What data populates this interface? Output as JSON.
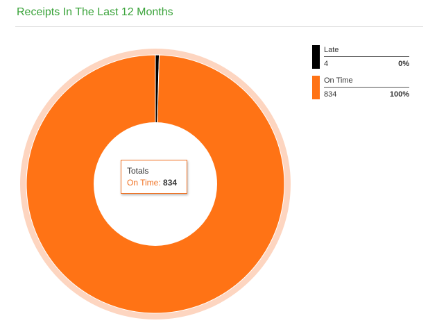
{
  "panel": {
    "title": "Receipts In The Last 12 Months"
  },
  "chart_data": {
    "type": "pie",
    "title": "Receipts In The Last 12 Months",
    "categories": [
      "Late",
      "On Time"
    ],
    "values": [
      4,
      834
    ],
    "percent_labels": [
      "0%",
      "100%"
    ],
    "colors": [
      "#000000",
      "#ff7315"
    ],
    "halo_color": "#fdd5c0",
    "hole_color": "#ffffff",
    "legend_position": "right",
    "center_tooltip": {
      "title": "Totals",
      "label": "On Time:",
      "value": "834"
    }
  }
}
